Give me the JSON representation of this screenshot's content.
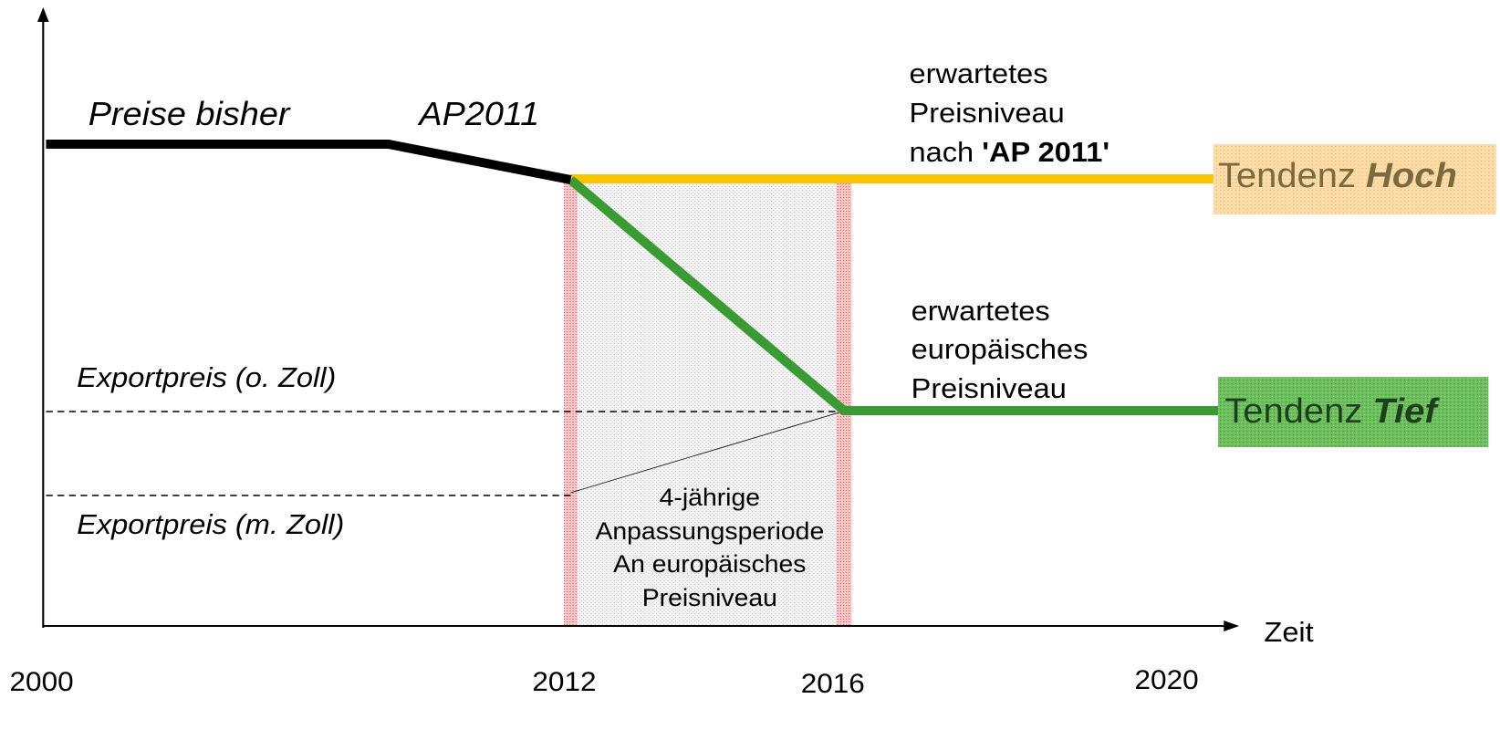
{
  "axis": {
    "x_label": "Zeit",
    "years": [
      "2000",
      "2012",
      "2016",
      "2020"
    ]
  },
  "annotations": {
    "past": "Preise bisher",
    "reform": "AP2011",
    "export_no_duty": "Exportpreis (o. Zoll)",
    "export_duty": "Exportpreis (m. Zoll)"
  },
  "high": {
    "note": [
      "erwartetes",
      "Preisniveau",
      "nach"
    ],
    "note_bold": "'AP 2011'",
    "badge": "Tendenz",
    "badge_bold": "Hoch"
  },
  "low": {
    "note": [
      "erwartetes",
      "europäisches",
      "Preisniveau"
    ],
    "badge": "Tendenz",
    "badge_bold": "Tief"
  },
  "period": [
    "4-jährige",
    "Anpassungsperiode",
    "An europäisches",
    "Preisniveau"
  ]
}
